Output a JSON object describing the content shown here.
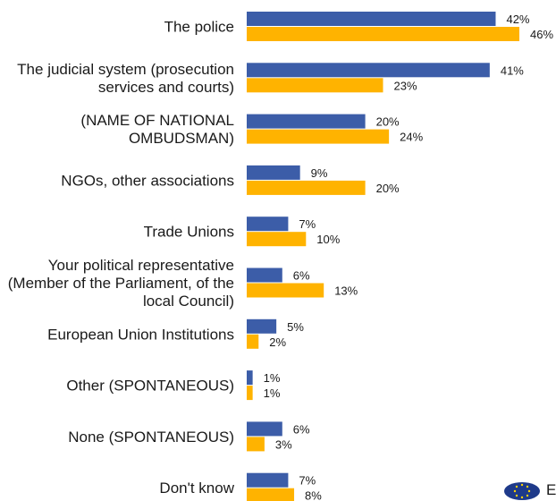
{
  "chart_data": {
    "type": "bar",
    "orientation": "horizontal",
    "categories": [
      [
        "The police"
      ],
      [
        "The judicial system (prosecution",
        "services and courts)"
      ],
      [
        "(NAME OF NATIONAL",
        "OMBUDSMAN)"
      ],
      [
        "NGOs, other associations"
      ],
      [
        "Trade Unions"
      ],
      [
        "Your political representative",
        "(Member of the Parliament, of the",
        "local Council)"
      ],
      [
        "European Union Institutions"
      ],
      [
        "Other (SPONTANEOUS)"
      ],
      [
        "None (SPONTANEOUS)"
      ],
      [
        "Don't know"
      ]
    ],
    "series": [
      {
        "values": [
          42,
          41,
          20,
          9,
          7,
          6,
          5,
          1,
          6,
          7
        ],
        "color": "#3c5da8"
      },
      {
        "values": [
          46,
          23,
          24,
          20,
          10,
          13,
          2,
          1,
          3,
          8
        ],
        "color": "#ffb300"
      }
    ],
    "value_suffix": "%",
    "xlim": [
      0,
      100
    ],
    "grid": false,
    "legend": "none"
  },
  "footer": {
    "logo_icon": "eu-flag-icon",
    "logo_text": "E"
  }
}
